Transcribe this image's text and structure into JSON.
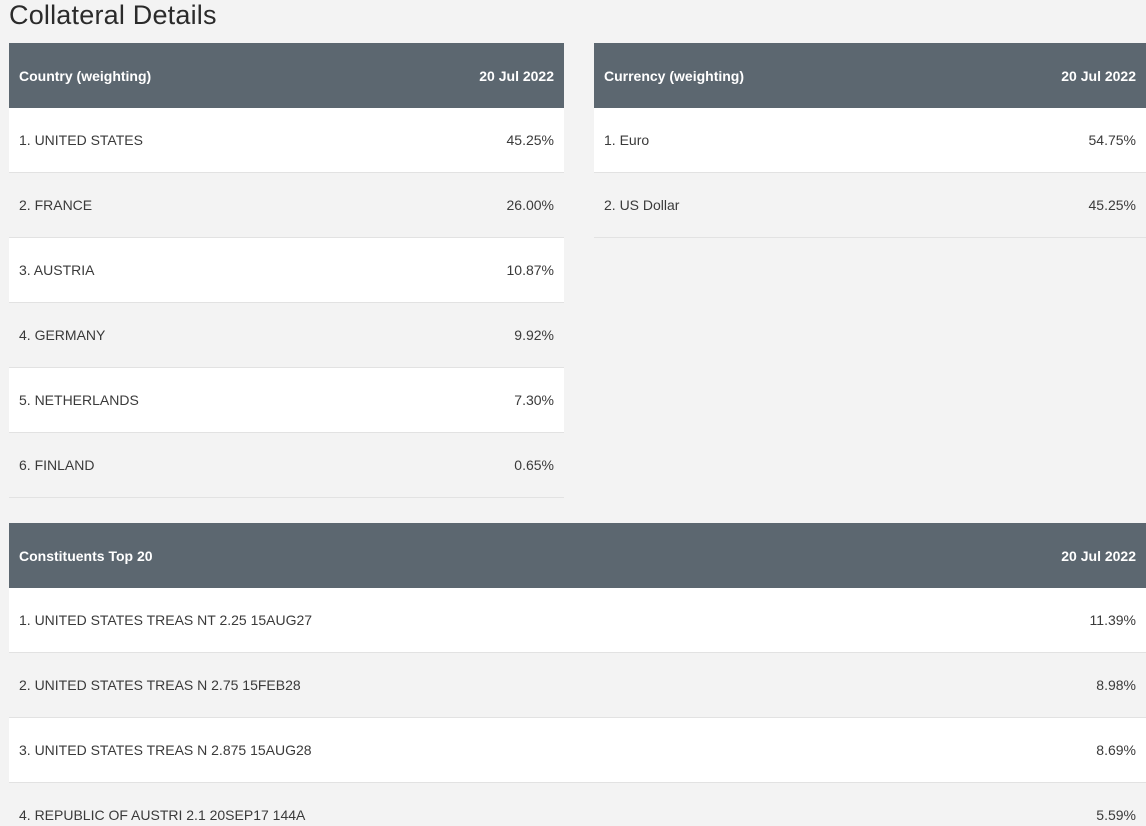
{
  "page": {
    "title": "Collateral Details"
  },
  "country_table": {
    "header_label": "Country (weighting)",
    "header_date": "20 Jul 2022",
    "rows": [
      {
        "label": "1. UNITED STATES",
        "value": "45.25%"
      },
      {
        "label": "2. FRANCE",
        "value": "26.00%"
      },
      {
        "label": "3. AUSTRIA",
        "value": "10.87%"
      },
      {
        "label": "4. GERMANY",
        "value": "9.92%"
      },
      {
        "label": "5. NETHERLANDS",
        "value": "7.30%"
      },
      {
        "label": "6. FINLAND",
        "value": "0.65%"
      }
    ]
  },
  "currency_table": {
    "header_label": "Currency (weighting)",
    "header_date": "20 Jul 2022",
    "rows": [
      {
        "label": "1. Euro",
        "value": "54.75%"
      },
      {
        "label": "2. US Dollar",
        "value": "45.25%"
      }
    ]
  },
  "constituents_table": {
    "header_label": "Constituents Top 20",
    "header_date": "20 Jul 2022",
    "rows": [
      {
        "label": "1. UNITED STATES TREAS NT 2.25 15AUG27",
        "value": "11.39%"
      },
      {
        "label": "2. UNITED STATES TREAS N 2.75 15FEB28",
        "value": "8.98%"
      },
      {
        "label": "3. UNITED STATES TREAS N 2.875 15AUG28",
        "value": "8.69%"
      },
      {
        "label": "4. REPUBLIC OF AUSTRI 2.1 20SEP17 144A",
        "value": "5.59%"
      }
    ]
  },
  "colors": {
    "header_bg": "#5c6770",
    "page_bg": "#f3f3f3",
    "row_white": "#ffffff"
  }
}
